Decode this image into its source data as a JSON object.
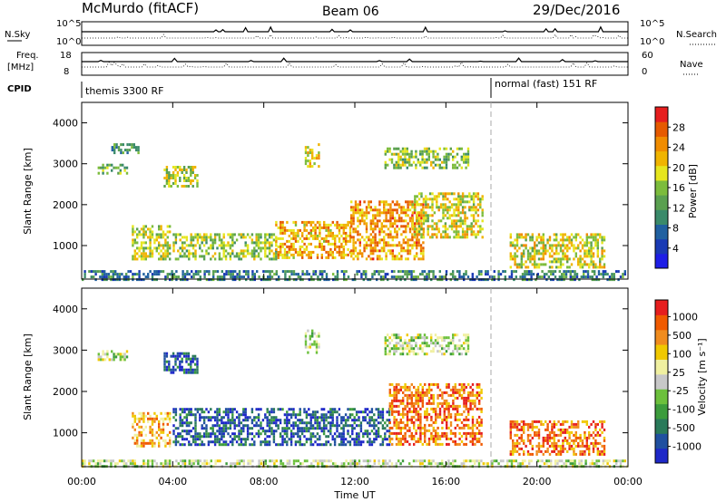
{
  "header": {
    "station": "McMurdo (fitACF)",
    "beam": "Beam 06",
    "date": "29/Dec/2016"
  },
  "top_strips": {
    "nsky_label": "N.Sky",
    "nsky_ticks": [
      "10^5",
      "10^0"
    ],
    "nsearch_label": "N.Search",
    "nsearch_ticks": [
      "10^5",
      "10^0"
    ],
    "freq_label": "Freq.",
    "freq_unit": "[MHz]",
    "freq_ticks": [
      "18",
      "8"
    ],
    "nave_label": "Nave",
    "nave_ticks": [
      "60",
      "0"
    ],
    "cpid_label": "CPID",
    "cpid_segments": [
      {
        "start_hour": 0,
        "end_hour": 18,
        "label": "themis 3300 RF"
      },
      {
        "start_hour": 18,
        "end_hour": 24,
        "label": "normal (fast) 151 RF"
      }
    ]
  },
  "chart_data": [
    {
      "type": "heatmap",
      "name": "power",
      "ylabel": "Slant Range [km]",
      "xlabel": "Time UT",
      "xlim": [
        0,
        24
      ],
      "ylim": [
        180,
        4500
      ],
      "yticks": [
        1000,
        2000,
        3000,
        4000
      ],
      "xticks": [
        "00:00",
        "04:00",
        "08:00",
        "12:00",
        "16:00",
        "20:00",
        "00:00"
      ],
      "colorbar": {
        "label": "Power [dB]",
        "ticks": [
          "4",
          "8",
          "12",
          "16",
          "20",
          "24",
          "28"
        ],
        "range": [
          0,
          30
        ],
        "colors": [
          "#1e1ee6",
          "#1a3ab4",
          "#2060a0",
          "#3a8a6a",
          "#5aa050",
          "#7cbc3c",
          "#e6e61e",
          "#f0b400",
          "#f08c00",
          "#e65a00",
          "#e61e1e"
        ]
      },
      "echo_regions": [
        {
          "t0": 0.7,
          "t1": 2.0,
          "r0": 2750,
          "r1": 3000,
          "level": 0.45
        },
        {
          "t0": 1.3,
          "t1": 2.5,
          "r0": 3250,
          "r1": 3500,
          "level": 0.35
        },
        {
          "t0": 3.6,
          "t1": 5.1,
          "r0": 2450,
          "r1": 2950,
          "level": 0.55
        },
        {
          "t0": 9.8,
          "t1": 10.4,
          "r0": 2950,
          "r1": 3500,
          "level": 0.6
        },
        {
          "t0": 13.3,
          "t1": 17.0,
          "r0": 2900,
          "r1": 3400,
          "level": 0.5
        },
        {
          "t0": 2.2,
          "t1": 3.9,
          "r0": 700,
          "r1": 1500,
          "level": 0.55
        },
        {
          "t0": 4.0,
          "t1": 8.5,
          "r0": 700,
          "r1": 1300,
          "level": 0.5
        },
        {
          "t0": 8.5,
          "t1": 11.8,
          "r0": 700,
          "r1": 1600,
          "level": 0.7
        },
        {
          "t0": 11.8,
          "t1": 15.0,
          "r0": 700,
          "r1": 2100,
          "level": 0.75
        },
        {
          "t0": 14.5,
          "t1": 17.6,
          "r0": 1200,
          "r1": 2300,
          "level": 0.6
        },
        {
          "t0": 18.8,
          "t1": 23.0,
          "r0": 500,
          "r1": 1300,
          "level": 0.6
        },
        {
          "t0": 0.0,
          "t1": 24.0,
          "r0": 180,
          "r1": 400,
          "level": 0.3
        }
      ]
    },
    {
      "type": "heatmap",
      "name": "velocity",
      "ylabel": "Slant Range [km]",
      "xlabel": "Time UT",
      "xlim": [
        0,
        24
      ],
      "ylim": [
        180,
        4500
      ],
      "yticks": [
        1000,
        2000,
        3000,
        4000
      ],
      "xticks": [
        "00:00",
        "04:00",
        "08:00",
        "12:00",
        "16:00",
        "20:00",
        "00:00"
      ],
      "colorbar": {
        "label": "Velocity [m s⁻¹]",
        "ticks": [
          "1000",
          "500",
          "100",
          "25",
          "-25",
          "-100",
          "-500",
          "-1000"
        ],
        "colors": [
          "#1e28c8",
          "#2050a0",
          "#2a7a5a",
          "#3c9c3c",
          "#6cc03c",
          "#c8c8c8",
          "#f0f0a0",
          "#f0c800",
          "#f08c1e",
          "#f05a00",
          "#e61e1e"
        ]
      },
      "echo_regions": [
        {
          "t0": 0.7,
          "t1": 2.0,
          "r0": 2750,
          "r1": 3000,
          "level": 0.5
        },
        {
          "t0": 3.6,
          "t1": 5.1,
          "r0": 2450,
          "r1": 2950,
          "level": 0.15
        },
        {
          "t0": 9.8,
          "t1": 10.4,
          "r0": 2950,
          "r1": 3500,
          "level": 0.5
        },
        {
          "t0": 13.3,
          "t1": 17.0,
          "r0": 2900,
          "r1": 3400,
          "level": 0.5
        },
        {
          "t0": 2.2,
          "t1": 3.9,
          "r0": 700,
          "r1": 1500,
          "level": 0.72
        },
        {
          "t0": 4.0,
          "t1": 13.5,
          "r0": 700,
          "r1": 1600,
          "level": 0.15
        },
        {
          "t0": 13.5,
          "t1": 17.6,
          "r0": 700,
          "r1": 2200,
          "level": 0.82
        },
        {
          "t0": 18.8,
          "t1": 23.0,
          "r0": 500,
          "r1": 1300,
          "level": 0.82
        },
        {
          "t0": 0.0,
          "t1": 24.0,
          "r0": 180,
          "r1": 350,
          "level": 0.5
        }
      ]
    }
  ]
}
